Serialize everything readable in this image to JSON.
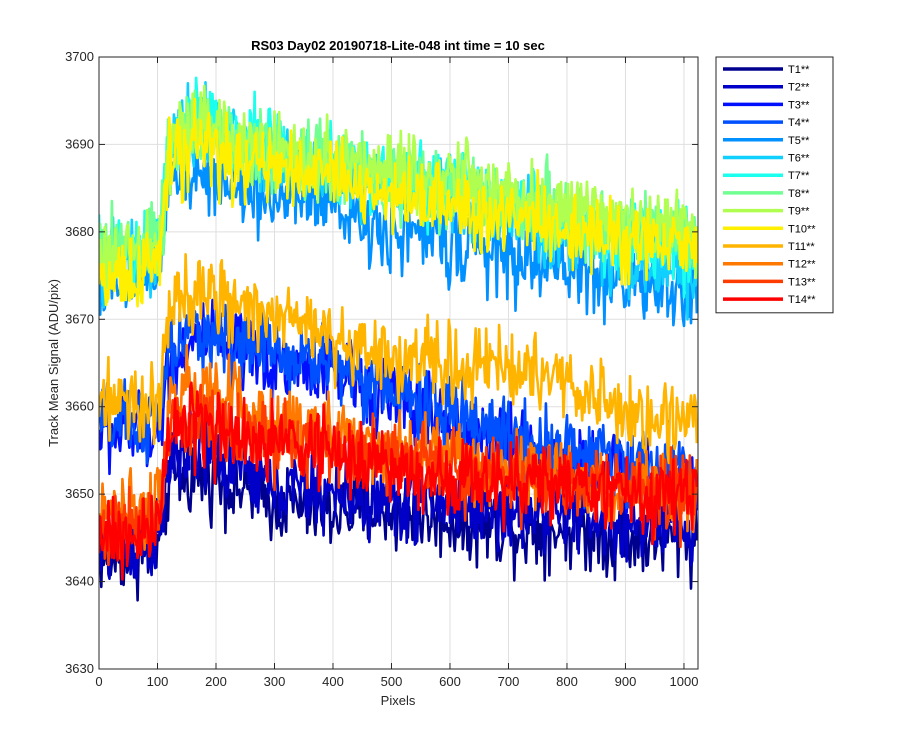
{
  "chart_data": {
    "type": "line",
    "title": "RS03 Day02 20190718-Lite-048 int time = 10 sec",
    "xlabel": "Pixels",
    "ylabel": "Track Mean Signal (ADU/pix)",
    "xlim": [
      0,
      1024
    ],
    "ylim": [
      3630,
      3700
    ],
    "xticks": [
      0,
      100,
      200,
      300,
      400,
      500,
      600,
      700,
      800,
      900,
      1000
    ],
    "yticks": [
      3630,
      3640,
      3650,
      3660,
      3670,
      3680,
      3690,
      3700
    ],
    "grid": true,
    "legend_position": "outside-top-right",
    "x_anchors": [
      0,
      80,
      105,
      120,
      170,
      200,
      300,
      400,
      500,
      600,
      700,
      800,
      900,
      1000,
      1023
    ],
    "series": [
      {
        "name": "T1**",
        "color": "#00008F",
        "noise": 2.2,
        "values": [
          3643,
          3643,
          3644,
          3652,
          3652,
          3652,
          3649,
          3648,
          3648,
          3647,
          3646,
          3646,
          3645,
          3645,
          3645
        ]
      },
      {
        "name": "T2**",
        "color": "#0000C8",
        "noise": 2.2,
        "values": [
          3644,
          3644,
          3645,
          3654,
          3655,
          3654,
          3651,
          3650,
          3649,
          3649,
          3648,
          3648,
          3646,
          3646,
          3646
        ]
      },
      {
        "name": "T3**",
        "color": "#0010FF",
        "noise": 2.2,
        "values": [
          3657,
          3657,
          3658,
          3665,
          3668,
          3667,
          3665,
          3664,
          3661,
          3658,
          3656,
          3654,
          3652,
          3652,
          3652
        ]
      },
      {
        "name": "T4**",
        "color": "#0050FF",
        "noise": 2.2,
        "values": [
          3658,
          3658,
          3659,
          3666,
          3669,
          3668,
          3666,
          3665,
          3662,
          3659,
          3657,
          3655,
          3653,
          3653,
          3653
        ]
      },
      {
        "name": "T5**",
        "color": "#0090FF",
        "noise": 2.2,
        "values": [
          3674,
          3674,
          3676,
          3686,
          3687,
          3686,
          3684,
          3683,
          3680,
          3679,
          3677,
          3676,
          3674,
          3673,
          3673
        ]
      },
      {
        "name": "T6**",
        "color": "#10D0FF",
        "noise": 2.2,
        "values": [
          3677,
          3677,
          3679,
          3690,
          3692,
          3691,
          3689,
          3687,
          3685,
          3684,
          3682,
          3680,
          3677,
          3676,
          3676
        ]
      },
      {
        "name": "T7**",
        "color": "#1BFFEF",
        "noise": 2.2,
        "values": [
          3678,
          3678,
          3680,
          3691,
          3693,
          3692,
          3690,
          3688,
          3686,
          3685,
          3683,
          3681,
          3679,
          3678,
          3678
        ]
      },
      {
        "name": "T8**",
        "color": "#70FF90",
        "noise": 2.2,
        "values": [
          3678,
          3678,
          3680,
          3690,
          3692,
          3691,
          3689,
          3688,
          3686,
          3685,
          3683,
          3682,
          3680,
          3679,
          3679
        ]
      },
      {
        "name": "T9**",
        "color": "#B0FF50",
        "noise": 2.2,
        "values": [
          3677,
          3677,
          3679,
          3690,
          3692,
          3691,
          3689,
          3688,
          3687,
          3686,
          3684,
          3683,
          3681,
          3680,
          3680
        ]
      },
      {
        "name": "T10**",
        "color": "#FFF000",
        "noise": 2.2,
        "values": [
          3675,
          3675,
          3677,
          3688,
          3690,
          3689,
          3687,
          3686,
          3684,
          3683,
          3682,
          3681,
          3679,
          3678,
          3678
        ]
      },
      {
        "name": "T11**",
        "color": "#FFB400",
        "noise": 2.2,
        "values": [
          3660,
          3660,
          3662,
          3671,
          3673,
          3672,
          3670,
          3668,
          3666,
          3665,
          3664,
          3663,
          3659,
          3659,
          3659
        ]
      },
      {
        "name": "T12**",
        "color": "#FF7800",
        "noise": 2.2,
        "values": [
          3648,
          3648,
          3650,
          3660,
          3662,
          3661,
          3658,
          3657,
          3655,
          3654,
          3653,
          3652,
          3650,
          3650,
          3650
        ]
      },
      {
        "name": "T13**",
        "color": "#FF3C00",
        "noise": 2.2,
        "values": [
          3646,
          3646,
          3648,
          3658,
          3659,
          3658,
          3656,
          3655,
          3654,
          3653,
          3652,
          3651,
          3650,
          3650,
          3650
        ]
      },
      {
        "name": "T14**",
        "color": "#FF0000",
        "noise": 2.2,
        "values": [
          3645,
          3645,
          3647,
          3657,
          3658,
          3657,
          3656,
          3655,
          3653,
          3652,
          3651,
          3651,
          3650,
          3650,
          3650
        ]
      }
    ]
  }
}
